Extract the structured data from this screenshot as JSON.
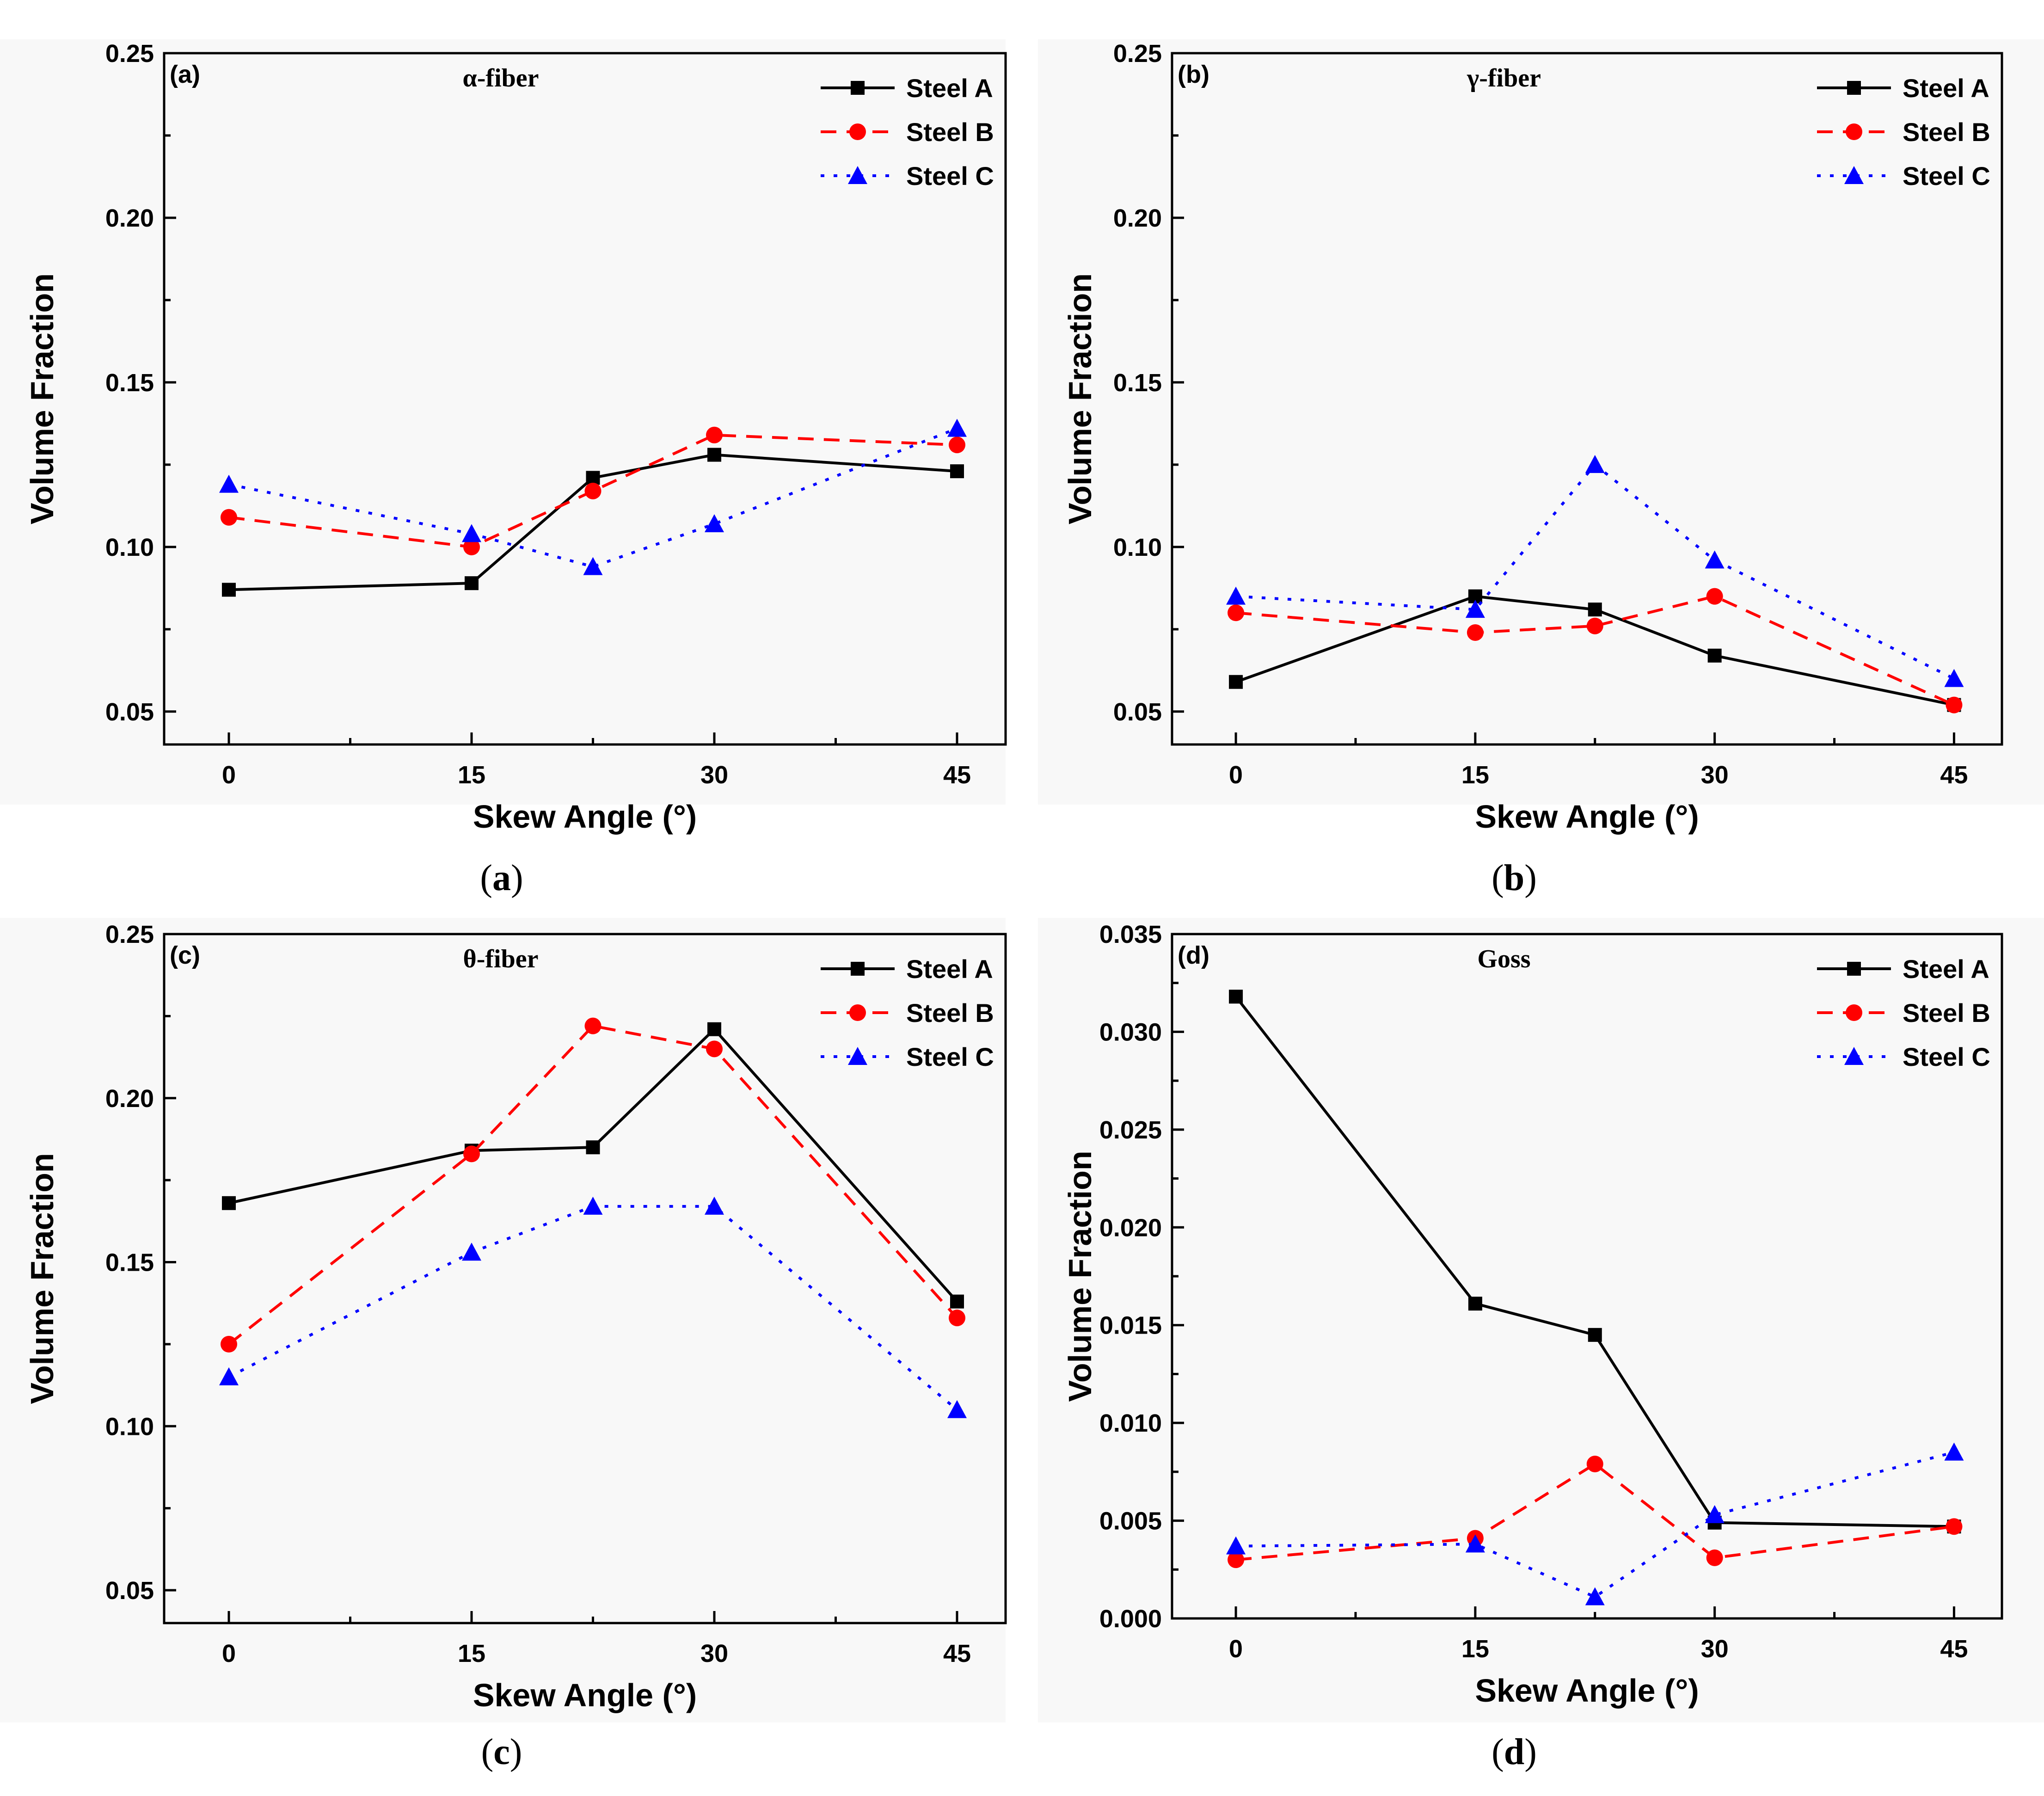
{
  "captions": [
    "(a)",
    "(b)",
    "(c)",
    "(d)"
  ],
  "chart_data": [
    {
      "type": "line",
      "panel_label": "(a)",
      "title": "α-fiber",
      "xlabel": "Skew Angle (°)",
      "ylabel": "Volume Fraction",
      "xlim": [
        -4,
        48
      ],
      "ylim": [
        0.04,
        0.25
      ],
      "x_ticks": [
        0,
        15,
        30,
        45
      ],
      "y_ticks": [
        0.05,
        0.1,
        0.15,
        0.2,
        0.25
      ],
      "y_tick_labels": [
        "0.05",
        "0.10",
        "0.15",
        "0.20",
        "0.25"
      ],
      "x": [
        0,
        15,
        22.5,
        30,
        45
      ],
      "legend_position": "top-right",
      "series": [
        {
          "name": "Steel A",
          "color": "#000000",
          "marker": "square",
          "dash": "solid",
          "values": [
            0.087,
            0.089,
            0.121,
            0.128,
            0.123
          ]
        },
        {
          "name": "Steel B",
          "color": "#ff0000",
          "marker": "circle",
          "dash": "dashed",
          "values": [
            0.109,
            0.1,
            0.117,
            0.134,
            0.131
          ]
        },
        {
          "name": "Steel C",
          "color": "#0000ff",
          "marker": "triangle",
          "dash": "dotted",
          "values": [
            0.119,
            0.104,
            0.094,
            0.107,
            0.136
          ]
        }
      ]
    },
    {
      "type": "line",
      "panel_label": "(b)",
      "title": "γ-fiber",
      "xlabel": "Skew Angle (°)",
      "ylabel": "Volume Fraction",
      "xlim": [
        -4,
        48
      ],
      "ylim": [
        0.04,
        0.25
      ],
      "x_ticks": [
        0,
        15,
        30,
        45
      ],
      "y_ticks": [
        0.05,
        0.1,
        0.15,
        0.2,
        0.25
      ],
      "y_tick_labels": [
        "0.05",
        "0.10",
        "0.15",
        "0.20",
        "0.25"
      ],
      "x": [
        0,
        15,
        22.5,
        30,
        45
      ],
      "legend_position": "top-right",
      "series": [
        {
          "name": "Steel A",
          "color": "#000000",
          "marker": "square",
          "dash": "solid",
          "values": [
            0.059,
            0.085,
            0.081,
            0.067,
            0.052
          ]
        },
        {
          "name": "Steel B",
          "color": "#ff0000",
          "marker": "circle",
          "dash": "dashed",
          "values": [
            0.08,
            0.074,
            0.076,
            0.085,
            0.052
          ]
        },
        {
          "name": "Steel C",
          "color": "#0000ff",
          "marker": "triangle",
          "dash": "dotted",
          "values": [
            0.085,
            0.081,
            0.125,
            0.096,
            0.06
          ]
        }
      ]
    },
    {
      "type": "line",
      "panel_label": "(c)",
      "title": "θ-fiber",
      "xlabel": "Skew Angle (°)",
      "ylabel": "Volume Fraction",
      "xlim": [
        -4,
        48
      ],
      "ylim": [
        0.04,
        0.25
      ],
      "x_ticks": [
        0,
        15,
        30,
        45
      ],
      "y_ticks": [
        0.05,
        0.1,
        0.15,
        0.2,
        0.25
      ],
      "y_tick_labels": [
        "0.05",
        "0.10",
        "0.15",
        "0.20",
        "0.25"
      ],
      "x": [
        0,
        15,
        22.5,
        30,
        45
      ],
      "legend_position": "top-right",
      "series": [
        {
          "name": "Steel A",
          "color": "#000000",
          "marker": "square",
          "dash": "solid",
          "values": [
            0.168,
            0.184,
            0.185,
            0.221,
            0.138
          ]
        },
        {
          "name": "Steel B",
          "color": "#ff0000",
          "marker": "circle",
          "dash": "dashed",
          "values": [
            0.125,
            0.183,
            0.222,
            0.215,
            0.133
          ]
        },
        {
          "name": "Steel C",
          "color": "#0000ff",
          "marker": "triangle",
          "dash": "dotted",
          "values": [
            0.115,
            0.153,
            0.167,
            0.167,
            0.105
          ]
        }
      ]
    },
    {
      "type": "line",
      "panel_label": "(d)",
      "title": "Goss",
      "xlabel": "Skew Angle (°)",
      "ylabel": "Volume Fraction",
      "xlim": [
        -4,
        48
      ],
      "ylim": [
        0,
        0.035
      ],
      "x_ticks": [
        0,
        15,
        30,
        45
      ],
      "y_ticks": [
        0,
        0.005,
        0.01,
        0.015,
        0.02,
        0.025,
        0.03,
        0.035
      ],
      "y_tick_labels": [
        "0.000",
        "0.005",
        "0.010",
        "0.015",
        "0.020",
        "0.025",
        "0.030",
        "0.035"
      ],
      "x": [
        0,
        15,
        22.5,
        30,
        45
      ],
      "legend_position": "top-right",
      "series": [
        {
          "name": "Steel A",
          "color": "#000000",
          "marker": "square",
          "dash": "solid",
          "values": [
            0.0318,
            0.0161,
            0.0145,
            0.0049,
            0.0047
          ]
        },
        {
          "name": "Steel B",
          "color": "#ff0000",
          "marker": "circle",
          "dash": "dashed",
          "values": [
            0.003,
            0.0041,
            0.0079,
            0.0031,
            0.0047
          ]
        },
        {
          "name": "Steel C",
          "color": "#0000ff",
          "marker": "triangle",
          "dash": "dotted",
          "values": [
            0.0037,
            0.0038,
            0.0011,
            0.0053,
            0.0085
          ]
        }
      ]
    }
  ]
}
